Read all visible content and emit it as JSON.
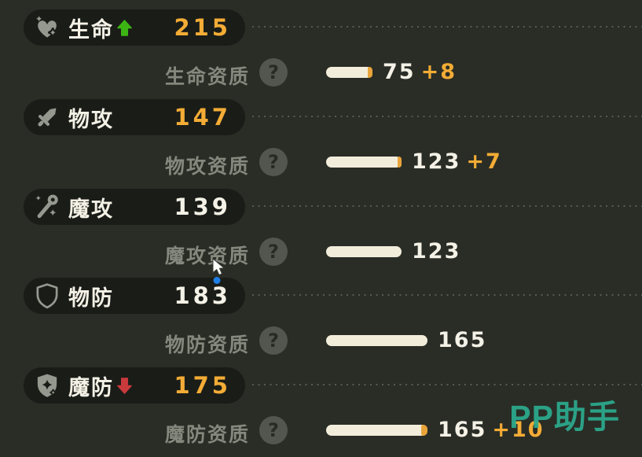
{
  "colors": {
    "background": "#2a2d26",
    "pill_background": "#1a1c18",
    "accent_orange": "#f3ac35",
    "bar_fill": "#f2eddb",
    "bar_bonus_tip": "#e8a43a",
    "up_green": "#3cb514",
    "down_red": "#c93a3c",
    "watermark_teal": "#2caa8e",
    "icon_gray": "#95988f",
    "aptitude_label_gray": "#85887d",
    "cursor_dot_blue": "#1f7fe8"
  },
  "help_glyph": "?",
  "watermark": "PP助手",
  "stats": [
    {
      "name": "生命",
      "icon": "heart-sparkle-icon",
      "trend": "up",
      "value": 215,
      "value_color": "orange",
      "apt_label": "生命资质",
      "apt_value": 75,
      "apt_bonus": "+8"
    },
    {
      "name": "物攻",
      "icon": "sword-icon",
      "trend": null,
      "value": 147,
      "value_color": "orange",
      "apt_label": "物攻资质",
      "apt_value": 123,
      "apt_bonus": "+7"
    },
    {
      "name": "魔攻",
      "icon": "magic-wand-icon",
      "trend": null,
      "value": 139,
      "value_color": "white",
      "apt_label": "魔攻资质",
      "apt_value": 123,
      "apt_bonus": null
    },
    {
      "name": "物防",
      "icon": "shield-outline-icon",
      "trend": null,
      "value": 183,
      "value_color": "white",
      "apt_label": "物防资质",
      "apt_value": 165,
      "apt_bonus": null
    },
    {
      "name": "魔防",
      "icon": "shield-sparkle-icon",
      "trend": "down",
      "value": 175,
      "value_color": "orange",
      "apt_label": "魔防资质",
      "apt_value": 165,
      "apt_bonus": "+10"
    }
  ]
}
